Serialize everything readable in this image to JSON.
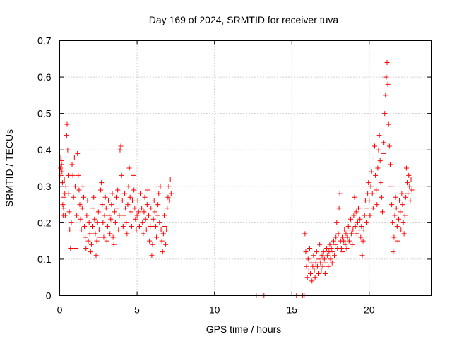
{
  "chart_data": {
    "type": "scatter",
    "title": "Day 169 of 2024, SRMTID for receiver tuva",
    "xlabel": "GPS time / hours",
    "ylabel": "SRMTID / TECUs",
    "xlim": [
      0,
      24
    ],
    "ylim": [
      0,
      0.7
    ],
    "x_ticks": [
      0,
      5,
      10,
      15,
      20
    ],
    "x_tick_labels": [
      "0",
      "5",
      "10",
      "15",
      "20"
    ],
    "y_ticks": [
      0,
      0.1,
      0.2,
      0.3,
      0.4,
      0.5,
      0.6,
      0.7
    ],
    "y_tick_labels": [
      "0",
      "0.1",
      "0.2",
      "0.3",
      "0.4",
      "0.5",
      "0.6",
      "0.7"
    ],
    "grid": true,
    "marker": "+",
    "series": [
      {
        "name": "SRMTID",
        "color": "#ff0000",
        "points": [
          [
            0.02,
            0.38
          ],
          [
            0.05,
            0.35
          ],
          [
            0.08,
            0.33
          ],
          [
            0.1,
            0.37
          ],
          [
            0.12,
            0.36
          ],
          [
            0.15,
            0.34
          ],
          [
            0.18,
            0.31
          ],
          [
            0.2,
            0.25
          ],
          [
            0.22,
            0.22
          ],
          [
            0.25,
            0.24
          ],
          [
            0.28,
            0.27
          ],
          [
            0.3,
            0.32
          ],
          [
            0.33,
            0.28
          ],
          [
            0.36,
            0.22
          ],
          [
            0.4,
            0.3
          ],
          [
            0.45,
            0.44
          ],
          [
            0.48,
            0.47
          ],
          [
            0.52,
            0.4
          ],
          [
            0.55,
            0.33
          ],
          [
            0.58,
            0.28
          ],
          [
            0.62,
            0.23
          ],
          [
            0.65,
            0.18
          ],
          [
            0.7,
            0.13
          ],
          [
            0.75,
            0.2
          ],
          [
            0.8,
            0.36
          ],
          [
            0.85,
            0.33
          ],
          [
            0.9,
            0.27
          ],
          [
            0.95,
            0.38
          ],
          [
            1.0,
            0.3
          ],
          [
            1.05,
            0.13
          ],
          [
            1.1,
            0.22
          ],
          [
            1.15,
            0.39
          ],
          [
            1.2,
            0.33
          ],
          [
            1.25,
            0.29
          ],
          [
            1.3,
            0.25
          ],
          [
            1.35,
            0.21
          ],
          [
            1.4,
            0.18
          ],
          [
            1.45,
            0.24
          ],
          [
            1.5,
            0.3
          ],
          [
            1.55,
            0.27
          ],
          [
            1.6,
            0.19
          ],
          [
            1.65,
            0.16
          ],
          [
            1.7,
            0.13
          ],
          [
            1.75,
            0.22
          ],
          [
            1.8,
            0.26
          ],
          [
            1.85,
            0.15
          ],
          [
            1.9,
            0.2
          ],
          [
            1.95,
            0.17
          ],
          [
            2.0,
            0.12
          ],
          [
            2.05,
            0.14
          ],
          [
            2.1,
            0.19
          ],
          [
            2.15,
            0.24
          ],
          [
            2.2,
            0.27
          ],
          [
            2.25,
            0.21
          ],
          [
            2.3,
            0.17
          ],
          [
            2.35,
            0.11
          ],
          [
            2.4,
            0.15
          ],
          [
            2.45,
            0.2
          ],
          [
            2.5,
            0.23
          ],
          [
            2.55,
            0.18
          ],
          [
            2.6,
            0.16
          ],
          [
            2.65,
            0.29
          ],
          [
            2.7,
            0.31
          ],
          [
            2.75,
            0.25
          ],
          [
            2.8,
            0.2
          ],
          [
            2.85,
            0.16
          ],
          [
            2.9,
            0.22
          ],
          [
            2.95,
            0.27
          ],
          [
            3.0,
            0.24
          ],
          [
            3.05,
            0.15
          ],
          [
            3.1,
            0.19
          ],
          [
            3.15,
            0.26
          ],
          [
            3.2,
            0.22
          ],
          [
            3.25,
            0.17
          ],
          [
            3.3,
            0.21
          ],
          [
            3.35,
            0.25
          ],
          [
            3.4,
            0.28
          ],
          [
            3.45,
            0.16
          ],
          [
            3.5,
            0.14
          ],
          [
            3.55,
            0.23
          ],
          [
            3.6,
            0.2
          ],
          [
            3.65,
            0.27
          ],
          [
            3.7,
            0.24
          ],
          [
            3.75,
            0.29
          ],
          [
            3.8,
            0.18
          ],
          [
            3.85,
            0.22
          ],
          [
            3.9,
            0.4
          ],
          [
            3.95,
            0.41
          ],
          [
            4.0,
            0.33
          ],
          [
            4.05,
            0.26
          ],
          [
            4.1,
            0.19
          ],
          [
            4.15,
            0.22
          ],
          [
            4.2,
            0.28
          ],
          [
            4.25,
            0.24
          ],
          [
            4.3,
            0.2
          ],
          [
            4.35,
            0.17
          ],
          [
            4.4,
            0.25
          ],
          [
            4.45,
            0.3
          ],
          [
            4.5,
            0.35
          ],
          [
            4.55,
            0.27
          ],
          [
            4.6,
            0.23
          ],
          [
            4.65,
            0.19
          ],
          [
            4.7,
            0.26
          ],
          [
            4.75,
            0.33
          ],
          [
            4.8,
            0.29
          ],
          [
            4.85,
            0.24
          ],
          [
            4.9,
            0.21
          ],
          [
            4.95,
            0.18
          ],
          [
            5.0,
            0.22
          ],
          [
            5.05,
            0.26
          ],
          [
            5.1,
            0.23
          ],
          [
            5.15,
            0.19
          ],
          [
            5.2,
            0.28
          ],
          [
            5.25,
            0.32
          ],
          [
            5.3,
            0.24
          ],
          [
            5.35,
            0.2
          ],
          [
            5.4,
            0.17
          ],
          [
            5.45,
            0.23
          ],
          [
            5.5,
            0.27
          ],
          [
            5.55,
            0.21
          ],
          [
            5.6,
            0.18
          ],
          [
            5.65,
            0.25
          ],
          [
            5.7,
            0.29
          ],
          [
            5.75,
            0.22
          ],
          [
            5.8,
            0.15
          ],
          [
            5.85,
            0.19
          ],
          [
            5.9,
            0.24
          ],
          [
            5.95,
            0.11
          ],
          [
            6.0,
            0.14
          ],
          [
            6.05,
            0.21
          ],
          [
            6.1,
            0.26
          ],
          [
            6.15,
            0.23
          ],
          [
            6.2,
            0.19
          ],
          [
            6.25,
            0.16
          ],
          [
            6.3,
            0.22
          ],
          [
            6.35,
            0.25
          ],
          [
            6.4,
            0.28
          ],
          [
            6.45,
            0.2
          ],
          [
            6.5,
            0.3
          ],
          [
            6.55,
            0.18
          ],
          [
            6.6,
            0.15
          ],
          [
            6.65,
            0.12
          ],
          [
            6.7,
            0.17
          ],
          [
            6.75,
            0.22
          ],
          [
            6.8,
            0.19
          ],
          [
            6.85,
            0.14
          ],
          [
            6.9,
            0.18
          ],
          [
            6.95,
            0.24
          ],
          [
            7.0,
            0.27
          ],
          [
            7.05,
            0.3
          ],
          [
            7.1,
            0.26
          ],
          [
            7.15,
            0.32
          ],
          [
            7.2,
            0.28
          ],
          [
            12.7,
            0.0
          ],
          [
            13.2,
            0.0
          ],
          [
            15.3,
            0.0
          ],
          [
            15.7,
            0.0
          ],
          [
            15.8,
            0.0
          ],
          [
            15.85,
            0.17
          ],
          [
            15.9,
            0.12
          ],
          [
            15.95,
            0.08
          ],
          [
            16.0,
            0.05
          ],
          [
            16.05,
            0.1
          ],
          [
            16.1,
            0.07
          ],
          [
            16.15,
            0.13
          ],
          [
            16.2,
            0.06
          ],
          [
            16.25,
            0.09
          ],
          [
            16.3,
            0.04
          ],
          [
            16.35,
            0.08
          ],
          [
            16.4,
            0.11
          ],
          [
            16.45,
            0.07
          ],
          [
            16.5,
            0.05
          ],
          [
            16.55,
            0.09
          ],
          [
            16.6,
            0.12
          ],
          [
            16.65,
            0.08
          ],
          [
            16.7,
            0.06
          ],
          [
            16.75,
            0.1
          ],
          [
            16.8,
            0.14
          ],
          [
            16.85,
            0.09
          ],
          [
            16.9,
            0.07
          ],
          [
            16.95,
            0.11
          ],
          [
            17.0,
            0.08
          ],
          [
            17.05,
            0.12
          ],
          [
            17.1,
            0.1
          ],
          [
            17.15,
            0.06
          ],
          [
            17.2,
            0.09
          ],
          [
            17.25,
            0.13
          ],
          [
            17.3,
            0.11
          ],
          [
            17.35,
            0.08
          ],
          [
            17.4,
            0.12
          ],
          [
            17.45,
            0.14
          ],
          [
            17.5,
            0.1
          ],
          [
            17.55,
            0.13
          ],
          [
            17.6,
            0.09
          ],
          [
            17.65,
            0.12
          ],
          [
            17.7,
            0.15
          ],
          [
            17.75,
            0.11
          ],
          [
            17.8,
            0.14
          ],
          [
            17.85,
            0.16
          ],
          [
            17.9,
            0.2
          ],
          [
            17.95,
            0.13
          ],
          [
            18.0,
            0.17
          ],
          [
            18.05,
            0.24
          ],
          [
            18.1,
            0.28
          ],
          [
            18.15,
            0.15
          ],
          [
            18.2,
            0.13
          ],
          [
            18.25,
            0.16
          ],
          [
            18.3,
            0.12
          ],
          [
            18.35,
            0.15
          ],
          [
            18.4,
            0.18
          ],
          [
            18.45,
            0.14
          ],
          [
            18.5,
            0.17
          ],
          [
            18.55,
            0.13
          ],
          [
            18.6,
            0.16
          ],
          [
            18.65,
            0.19
          ],
          [
            18.7,
            0.15
          ],
          [
            18.75,
            0.18
          ],
          [
            18.8,
            0.21
          ],
          [
            18.85,
            0.17
          ],
          [
            18.9,
            0.14
          ],
          [
            18.95,
            0.18
          ],
          [
            19.0,
            0.22
          ],
          [
            19.05,
            0.27
          ],
          [
            19.1,
            0.19
          ],
          [
            19.15,
            0.23
          ],
          [
            19.2,
            0.17
          ],
          [
            19.25,
            0.2
          ],
          [
            19.3,
            0.24
          ],
          [
            19.35,
            0.18
          ],
          [
            19.4,
            0.21
          ],
          [
            19.45,
            0.16
          ],
          [
            19.5,
            0.19
          ],
          [
            19.55,
            0.11
          ],
          [
            19.6,
            0.15
          ],
          [
            19.65,
            0.18
          ],
          [
            19.7,
            0.22
          ],
          [
            19.75,
            0.26
          ],
          [
            19.8,
            0.2
          ],
          [
            19.85,
            0.24
          ],
          [
            19.9,
            0.28
          ],
          [
            19.95,
            0.31
          ],
          [
            20.0,
            0.26
          ],
          [
            20.05,
            0.22
          ],
          [
            20.1,
            0.3
          ],
          [
            20.15,
            0.34
          ],
          [
            20.2,
            0.28
          ],
          [
            20.25,
            0.24
          ],
          [
            20.3,
            0.38
          ],
          [
            20.35,
            0.41
          ],
          [
            20.4,
            0.33
          ],
          [
            20.45,
            0.29
          ],
          [
            20.5,
            0.25
          ],
          [
            20.55,
            0.35
          ],
          [
            20.6,
            0.4
          ],
          [
            20.65,
            0.44
          ],
          [
            20.7,
            0.37
          ],
          [
            20.75,
            0.31
          ],
          [
            20.8,
            0.27
          ],
          [
            20.85,
            0.23
          ],
          [
            20.9,
            0.39
          ],
          [
            20.95,
            0.42
          ],
          [
            21.0,
            0.5
          ],
          [
            21.05,
            0.55
          ],
          [
            21.1,
            0.6
          ],
          [
            21.15,
            0.64
          ],
          [
            21.2,
            0.58
          ],
          [
            21.25,
            0.47
          ],
          [
            21.3,
            0.41
          ],
          [
            21.35,
            0.36
          ],
          [
            21.4,
            0.3
          ],
          [
            21.45,
            0.25
          ],
          [
            21.5,
            0.2
          ],
          [
            21.55,
            0.12
          ],
          [
            21.6,
            0.16
          ],
          [
            21.65,
            0.22
          ],
          [
            21.7,
            0.27
          ],
          [
            21.75,
            0.24
          ],
          [
            21.8,
            0.19
          ],
          [
            21.85,
            0.15
          ],
          [
            21.9,
            0.21
          ],
          [
            21.95,
            0.26
          ],
          [
            22.0,
            0.23
          ],
          [
            22.05,
            0.18
          ],
          [
            22.1,
            0.28
          ],
          [
            22.15,
            0.25
          ],
          [
            22.2,
            0.2
          ],
          [
            22.25,
            0.17
          ],
          [
            22.3,
            0.22
          ],
          [
            22.35,
            0.27
          ],
          [
            22.4,
            0.35
          ],
          [
            22.45,
            0.31
          ],
          [
            22.5,
            0.28
          ],
          [
            22.55,
            0.33
          ],
          [
            22.6,
            0.3
          ],
          [
            22.65,
            0.26
          ],
          [
            22.7,
            0.32
          ],
          [
            22.75,
            0.29
          ]
        ]
      }
    ]
  }
}
